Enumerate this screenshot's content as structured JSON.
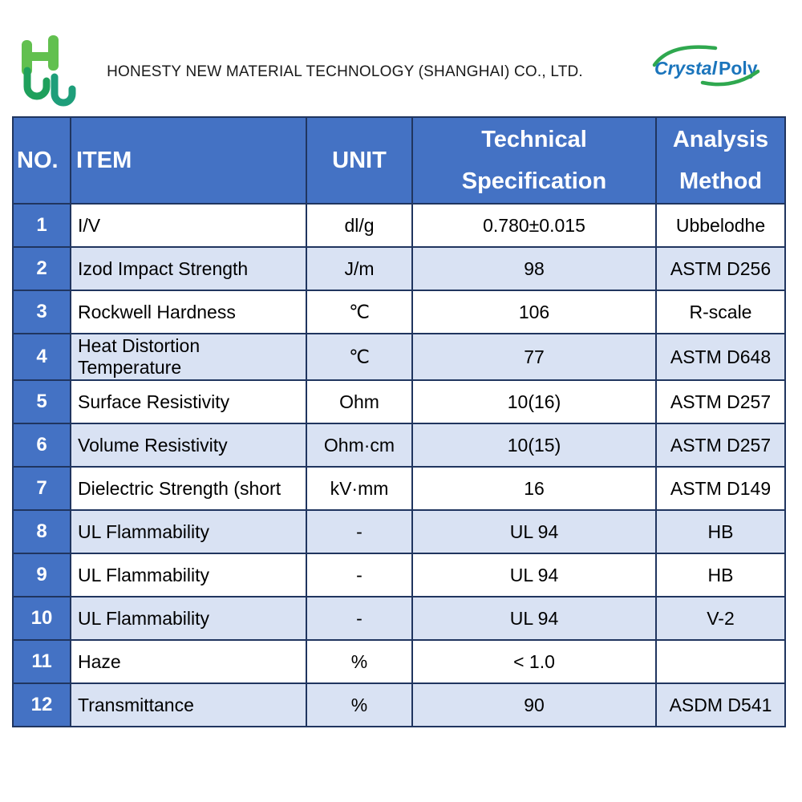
{
  "header": {
    "company": "HONESTY NEW MATERIAL TECHNOLOGY (SHANGHAI) CO., LTD.",
    "brand_part1": "Crystal",
    "brand_part2": "Poly"
  },
  "table": {
    "header": {
      "no": "NO.",
      "item": "ITEM",
      "unit": "UNIT",
      "spec_line1": "Technical",
      "spec_line2": "Specification",
      "method_line1": "Analysis",
      "method_line2": "Method"
    },
    "rows": [
      {
        "no": "1",
        "item": "I/V",
        "unit": "dl/g",
        "spec": "0.780±0.015",
        "method": "Ubbelodhe"
      },
      {
        "no": "2",
        "item": "Izod Impact Strength",
        "unit": "J/m",
        "spec": "98",
        "method": "ASTM D256"
      },
      {
        "no": "3",
        "item": "Rockwell Hardness",
        "unit": "℃",
        "spec": "106",
        "method": "R-scale"
      },
      {
        "no": "4",
        "item": "Heat Distortion Temperature",
        "unit": "℃",
        "spec": "77",
        "method": "ASTM D648"
      },
      {
        "no": "5",
        "item": "Surface Resistivity",
        "unit": "Ohm",
        "spec": "10(16)",
        "method": "ASTM D257"
      },
      {
        "no": "6",
        "item": "Volume Resistivity",
        "unit": "Ohm·cm",
        "spec": "10(15)",
        "method": "ASTM D257"
      },
      {
        "no": "7",
        "item": "Dielectric Strength (short",
        "unit": "kV·mm",
        "spec": "16",
        "method": "ASTM D149"
      },
      {
        "no": "8",
        "item": "UL Flammability",
        "unit": "-",
        "spec": "UL 94",
        "method": "HB"
      },
      {
        "no": "9",
        "item": "UL Flammability",
        "unit": "-",
        "spec": "UL 94",
        "method": "HB"
      },
      {
        "no": "10",
        "item": "UL Flammability",
        "unit": "-",
        "spec": "UL 94",
        "method": "V-2"
      },
      {
        "no": "11",
        "item": "Haze",
        "unit": "%",
        "spec": "< 1.0",
        "method": ""
      },
      {
        "no": "12",
        "item": "Transmittance",
        "unit": "%",
        "spec": "90",
        "method": "ASDM D541"
      }
    ]
  },
  "colors": {
    "header_blue": "#4472C4",
    "band_blue": "#D9E2F3",
    "border_color": "#20355f",
    "logo_green": "#2FA84F",
    "logo_blue": "#1B75BC"
  }
}
